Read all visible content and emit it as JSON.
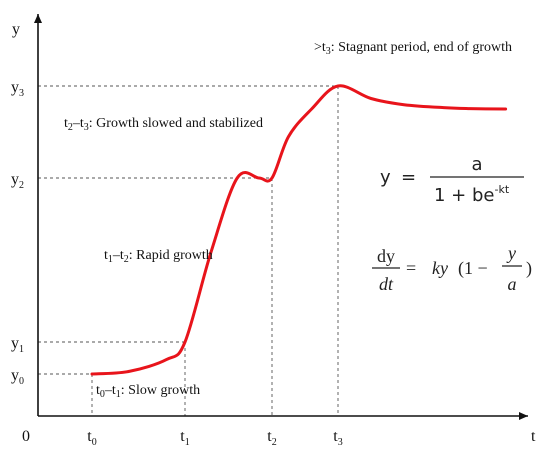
{
  "chart_data": {
    "type": "line",
    "title": "",
    "xlabel": "t",
    "ylabel": "y",
    "origin_label": "0",
    "grid": false,
    "x_ticks": [
      {
        "base": "t",
        "sub": "0",
        "x": 0.0
      },
      {
        "base": "t",
        "sub": "1",
        "x": 1.0
      },
      {
        "base": "t",
        "sub": "2",
        "x": 2.0
      },
      {
        "base": "t",
        "sub": "3",
        "x": 3.0
      }
    ],
    "y_ticks": [
      {
        "base": "y",
        "sub": "0",
        "y": 0.0
      },
      {
        "base": "y",
        "sub": "1",
        "y": 1.0
      },
      {
        "base": "y",
        "sub": "2",
        "y": 2.0
      },
      {
        "base": "y",
        "sub": "3",
        "y": 3.0
      }
    ],
    "series": [
      {
        "color": "#e8141b",
        "x": [
          0.0,
          0.4,
          0.8,
          1.0,
          1.3,
          1.6,
          1.85,
          2.0,
          2.25,
          2.6,
          3.0,
          3.5,
          4.0,
          4.6,
          5.0,
          5.54
        ],
        "y": [
          0.0,
          0.08,
          0.45,
          1.0,
          1.55,
          2.0,
          2.0,
          2.0,
          2.45,
          2.75,
          3.0,
          3.26,
          3.39,
          3.45,
          3.47,
          3.48
        ]
      }
    ],
    "regions": [
      {
        "from": "t",
        "from_sub": "0",
        "sep": "–",
        "to": "t",
        "to_sub": "1",
        "desc": ": Slow growth"
      },
      {
        "from": "t",
        "from_sub": "1",
        "sep": "–",
        "to": "t",
        "to_sub": "2",
        "desc": ": Rapid growth"
      },
      {
        "from": "t",
        "from_sub": "2",
        "sep": "–",
        "to": "t",
        "to_sub": "3",
        "desc": ": Growth slowed and stabilized"
      },
      {
        "from": ">t",
        "from_sub": "3",
        "sep": "",
        "to": "",
        "to_sub": "",
        "desc": ": Stagnant period, end of growth"
      }
    ],
    "equations": {
      "logistic": {
        "lhs": "y",
        "eq": "=",
        "num": "a",
        "den": "1 + be",
        "den_sup": "-kt"
      },
      "differential": {
        "num_left": "dy",
        "den_left": "dt",
        "eq": "=",
        "ky": "ky",
        "open": "(1 −",
        "frac_num": "y",
        "frac_den": "a",
        "close": ")"
      }
    }
  }
}
